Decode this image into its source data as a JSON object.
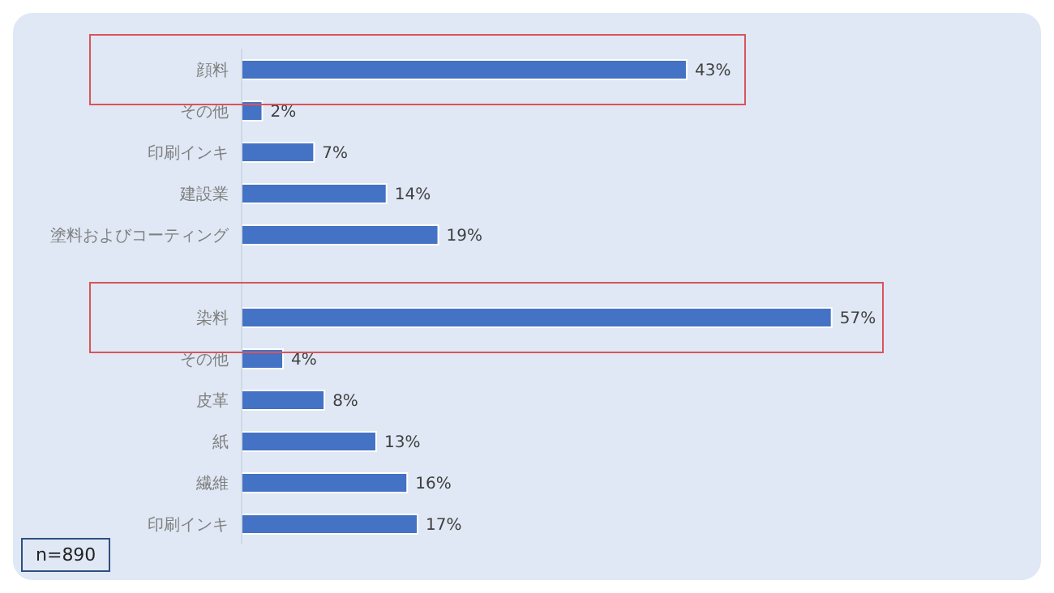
{
  "chart_data": {
    "type": "bar",
    "orientation": "horizontal",
    "categories": [
      "顔料",
      "その他",
      "印刷インキ",
      "建設業",
      "塗料およびコーティング",
      null,
      "染料",
      "その他",
      "皮革",
      "紙",
      "繊維",
      "印刷インキ"
    ],
    "values": [
      43,
      2,
      7,
      14,
      19,
      null,
      57,
      4,
      8,
      13,
      16,
      17
    ],
    "value_labels": [
      "43%",
      "2%",
      "7%",
      "14%",
      "19%",
      null,
      "57%",
      "4%",
      "8%",
      "13%",
      "16%",
      "17%"
    ],
    "color": "#4472c4",
    "tick_labels": "y",
    "annotations": [
      "n=890"
    ]
  }
}
